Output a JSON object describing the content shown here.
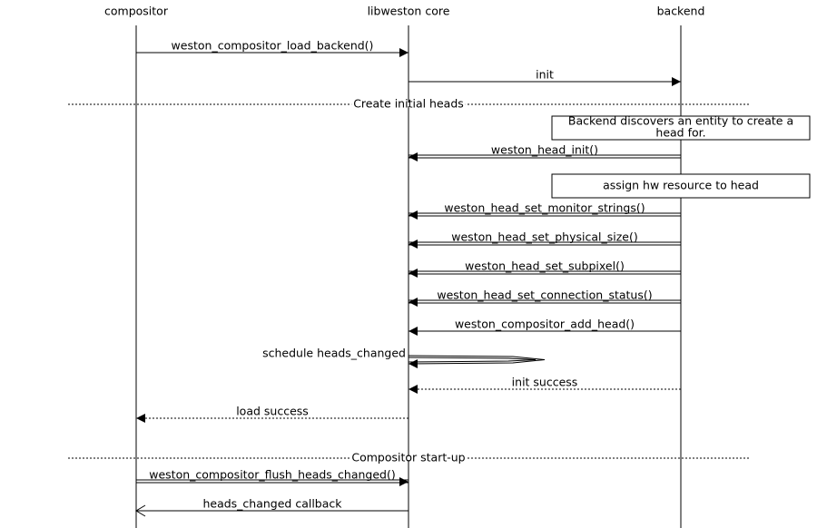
{
  "participants": [
    "compositor",
    "libweston core",
    "backend"
  ],
  "separators": [
    "Create initial heads",
    "Compositor start-up"
  ],
  "notes": [
    {
      "lines": [
        "Backend discovers an entity to create a",
        "head for."
      ]
    },
    {
      "lines": [
        "assign hw resource to head"
      ]
    }
  ],
  "messages": [
    "weston_compositor_load_backend()",
    "init",
    "weston_head_init()",
    "weston_head_set_monitor_strings()",
    "weston_head_set_physical_size()",
    "weston_head_set_subpixel()",
    "weston_head_set_connection_status()",
    "weston_compositor_add_head()",
    "schedule heads_changed",
    "init success",
    "load success",
    "weston_compositor_flush_heads_changed()",
    "heads_changed callback"
  ]
}
